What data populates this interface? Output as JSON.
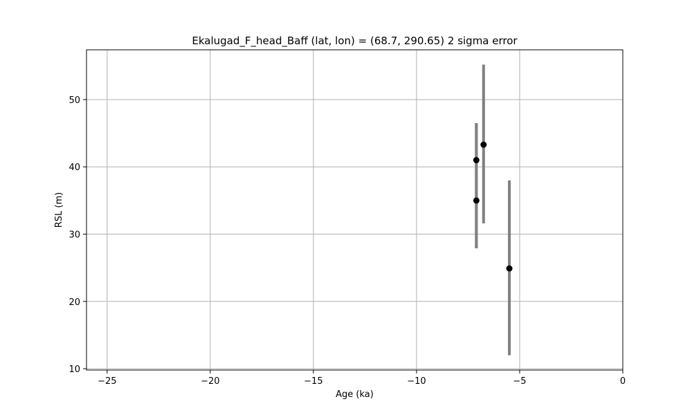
{
  "chart_data": {
    "type": "scatter",
    "title": "Ekalugad_F_head_Baff (lat, lon) = (68.7, 290.65)  2 sigma error",
    "xlabel": "Age (ka)",
    "ylabel": "RSL (m)",
    "xlim": [
      -26,
      0
    ],
    "ylim": [
      9.8,
      57.4
    ],
    "xticks": [
      -25,
      -20,
      -15,
      -10,
      -5,
      0
    ],
    "xtick_labels": [
      "−25",
      "−20",
      "−15",
      "−10",
      "−5",
      "0"
    ],
    "yticks": [
      10,
      20,
      30,
      40,
      50
    ],
    "ytick_labels": [
      "10",
      "20",
      "30",
      "40",
      "50"
    ],
    "grid": true,
    "colors": {
      "marker": "#000000",
      "errorbar": "#808080",
      "grid": "#b0b0b0"
    },
    "points": [
      {
        "x": -7.1,
        "y": 41.0,
        "y_low": 27.9,
        "y_high": 46.5
      },
      {
        "x": -7.1,
        "y": 35.0,
        "y_low": 27.9,
        "y_high": 46.5
      },
      {
        "x": -6.75,
        "y": 43.3,
        "y_low": 31.6,
        "y_high": 55.2
      },
      {
        "x": -5.5,
        "y": 24.9,
        "y_low": 12.0,
        "y_high": 38.0
      }
    ]
  }
}
